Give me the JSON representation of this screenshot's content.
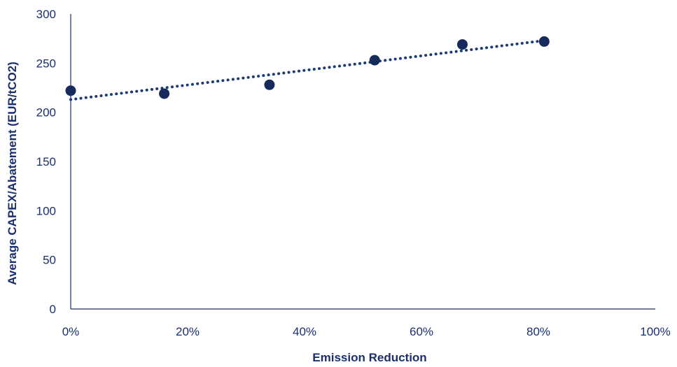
{
  "chart_data": {
    "type": "scatter",
    "title": "",
    "xlabel": "Emission Reduction",
    "ylabel": "Average CAPEX/Abatement (EUR/tCO2)",
    "xlim": [
      0,
      1
    ],
    "ylim": [
      0,
      300
    ],
    "x_ticks": [
      "0%",
      "20%",
      "40%",
      "60%",
      "80%",
      "100%"
    ],
    "y_ticks": [
      "0",
      "50",
      "100",
      "150",
      "200",
      "250",
      "300"
    ],
    "grid": false,
    "legend": "none",
    "series": [
      {
        "x": [
          0.0,
          0.16,
          0.34,
          0.52,
          0.67,
          0.81
        ],
        "y": [
          222,
          219,
          228,
          253,
          269,
          272
        ],
        "color": "#162a5c",
        "marker": "circle"
      }
    ],
    "trendline": {
      "type": "linear",
      "style": "dotted",
      "color": "#1a3a78",
      "x_range": [
        0.0,
        0.81
      ],
      "y_values": [
        213,
        273
      ]
    }
  }
}
